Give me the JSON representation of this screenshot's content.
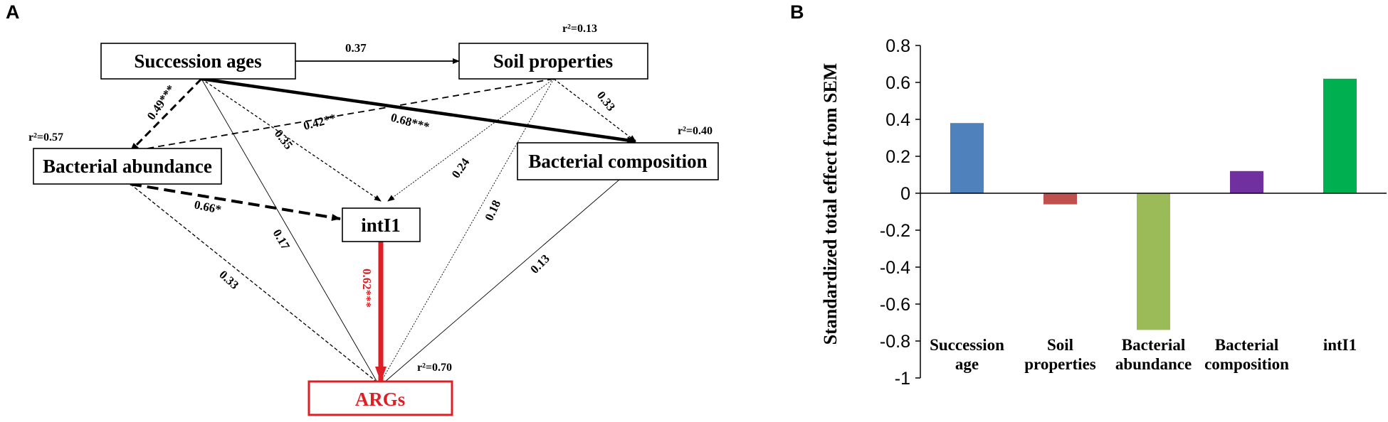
{
  "panel_a": {
    "letter": "A",
    "nodes": {
      "succession": "Succession ages",
      "soil": "Soil properties",
      "abundance": "Bacterial abundance",
      "composition": "Bacterial composition",
      "inti1": "intI1",
      "args": "ARGs"
    },
    "r2": {
      "soil": "r²=0.13",
      "abundance": "r²=0.57",
      "composition": "r²=0.40",
      "args": "r²=0.70"
    },
    "paths": [
      {
        "from": "Succession ages",
        "to": "Soil properties",
        "coef": "0.37",
        "style": "solid"
      },
      {
        "from": "Succession ages",
        "to": "Bacterial abundance",
        "coef": "0.49***",
        "style": "dashed-bold"
      },
      {
        "from": "Succession ages",
        "to": "Bacterial composition",
        "coef": "0.68***",
        "style": "solid-bold"
      },
      {
        "from": "Succession ages",
        "to": "intI1",
        "coef": "0.35",
        "style": "dotted"
      },
      {
        "from": "Succession ages",
        "to": "ARGs",
        "coef": "0.17",
        "style": "solid-thin"
      },
      {
        "from": "Soil properties",
        "to": "Bacterial abundance",
        "coef": "0.42**",
        "style": "dashed"
      },
      {
        "from": "Soil properties",
        "to": "Bacterial composition",
        "coef": "0.33",
        "style": "dotted"
      },
      {
        "from": "Soil properties",
        "to": "intI1",
        "coef": "0.24",
        "style": "dotted-thin"
      },
      {
        "from": "Soil properties",
        "to": "ARGs",
        "coef": "0.18",
        "style": "dotted-thin"
      },
      {
        "from": "Bacterial abundance",
        "to": "intI1",
        "coef": "0.66*",
        "style": "dashed-bold"
      },
      {
        "from": "Bacterial abundance",
        "to": "ARGs",
        "coef": "0.33",
        "style": "dotted"
      },
      {
        "from": "Bacterial composition",
        "to": "ARGs",
        "coef": "0.13",
        "style": "solid-thin"
      },
      {
        "from": "intI1",
        "to": "ARGs",
        "coef": "0.62***",
        "style": "solid-red"
      }
    ]
  },
  "panel_b": {
    "letter": "B",
    "colors": [
      "#4f81bd",
      "#c0504d",
      "#9bbb59",
      "#7030a0",
      "#00b050"
    ]
  },
  "chart_data": {
    "type": "bar",
    "categories": [
      [
        "Succession",
        "age"
      ],
      [
        "Soil",
        "properties"
      ],
      [
        "Bacterial",
        "abundance"
      ],
      [
        "Bacterial",
        "composition"
      ],
      [
        "intI1"
      ]
    ],
    "values": [
      0.38,
      -0.06,
      -0.74,
      0.12,
      0.62
    ],
    "ylabel": "Standardized total effect from SEM",
    "ylim": [
      -1,
      0.8
    ],
    "yticks": [
      "0.8",
      "0.6",
      "0.4",
      "0.2",
      "0",
      "-0.2",
      "-0.4",
      "-0.6",
      "-0.8",
      "-1"
    ],
    "grid": false
  }
}
